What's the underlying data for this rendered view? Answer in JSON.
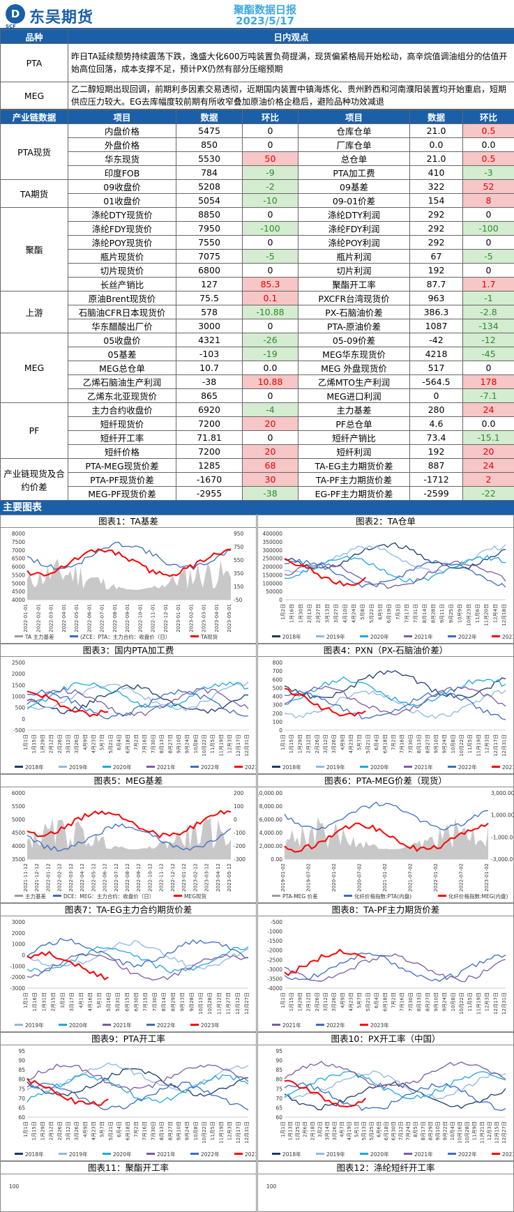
{
  "header": {
    "logo_mark": "D",
    "logo_text": "东吴期货",
    "logo_sub": "SCF",
    "title_line1": "聚酯数据日报",
    "title_line2": "2023/5/17"
  },
  "view": {
    "col_product": "品种",
    "col_view": "日内观点",
    "rows": [
      {
        "product": "PTA",
        "text": "昨日TA延续颓势持续震荡下跌，逸盛大化600万吨装置负荷提满，现货偏紧格局开始松动，高辛烷值调油组分的估值开始高位回落，成本支撑不足，预计PX仍然有部分压缩预期"
      },
      {
        "product": "MEG",
        "text": "乙二醇短期出现回调，前期利多因素交易透彻，近期国内装置中镇海炼化、贵州黔西和河南濮阳装置均开始重启，短期供应压力较大。EG去库幅度较前期有所收窄叠加原油价格企稳后，避险品种功效减退"
      }
    ]
  },
  "data_table": {
    "headers": [
      "产业链数据",
      "项目",
      "数据",
      "环比",
      "项目",
      "数据",
      "环比"
    ],
    "groups": [
      {
        "name": "PTA现货",
        "rows": [
          [
            "内盘价格",
            "5475",
            "0",
            "仓库仓单",
            "21.0",
            "0.5"
          ],
          [
            "外盘价格",
            "850",
            "0",
            "厂库仓单",
            "0.0",
            "0.0"
          ],
          [
            "华东现货",
            "5530",
            "50",
            "总仓单",
            "21.0",
            "0.5"
          ],
          [
            "印度FOB",
            "784",
            "-9",
            "PTA加工费",
            "410",
            "-3"
          ]
        ]
      },
      {
        "name": "TA期货",
        "rows": [
          [
            "09收盘价",
            "5208",
            "-2",
            "09基差",
            "322",
            "52"
          ],
          [
            "01收盘价",
            "5054",
            "-10",
            "09-01价差",
            "154",
            "8"
          ]
        ]
      },
      {
        "name": "聚酯",
        "rows": [
          [
            "涤纶DTY现货价",
            "8850",
            "0",
            "涤纶DTY利润",
            "292",
            "0"
          ],
          [
            "涤纶FDY现货价",
            "7950",
            "-100",
            "涤纶FDY利润",
            "292",
            "-100"
          ],
          [
            "涤纶POY现货价",
            "7550",
            "0",
            "涤纶POY利润",
            "292",
            "0"
          ],
          [
            "瓶片现货价",
            "7075",
            "-5",
            "瓶片利润",
            "67",
            "-5"
          ],
          [
            "切片现货价",
            "6800",
            "0",
            "切片利润",
            "192",
            "0"
          ],
          [
            "长丝产销比",
            "127",
            "85.3",
            "聚酯开工率",
            "87.7",
            "1.7"
          ]
        ]
      },
      {
        "name": "上游",
        "rows": [
          [
            "原油Brent现货价",
            "75.5",
            "0.1",
            "PXCFR台湾现货价",
            "963",
            "-1"
          ],
          [
            "石脑油CFR日本现货价",
            "578",
            "-10.88",
            "PX-石脑油价差",
            "386.3",
            "-2.8"
          ],
          [
            "华东醋酸出厂价",
            "3000",
            "0",
            "PTA-原油价差",
            "1087",
            "-134"
          ]
        ]
      },
      {
        "name": "MEG",
        "rows": [
          [
            "05收盘价",
            "4321",
            "-26",
            "05-09价差",
            "-42",
            "-12"
          ],
          [
            "05基差",
            "-103",
            "-19",
            "MEG华东现货价",
            "4218",
            "-45"
          ],
          [
            "MEG总仓单",
            "10.7",
            "0.0",
            "MEG 外盘现货价",
            "517",
            "0"
          ],
          [
            "乙烯石脑油生产利润",
            "-38",
            "10.88",
            "乙烯MTO生产利润",
            "-564.5",
            "178"
          ],
          [
            "乙烯东北亚现货价",
            "865",
            "0",
            "MEG进口利润",
            "0",
            "-7.1"
          ]
        ]
      },
      {
        "name": "PF",
        "rows": [
          [
            "主力合约收盘价",
            "6920",
            "-4",
            "主力基差",
            "280",
            "24"
          ],
          [
            "短纤现货价",
            "7200",
            "20",
            "PF总仓单",
            "4.6",
            "0.0"
          ],
          [
            "短纤开工率",
            "71.81",
            "0",
            "短纤产销比",
            "73.4",
            "-15.1"
          ],
          [
            "短纤价格",
            "7200",
            "20",
            "短纤利润",
            "192",
            "20"
          ]
        ]
      },
      {
        "name": "产业链现货及合约价差",
        "rows": [
          [
            "PTA-MEG现货价差",
            "1285",
            "68",
            "TA-EG主力期货价差",
            "887",
            "24"
          ],
          [
            "PTA-PF现货价差",
            "-1670",
            "30",
            "TA-PF主力期货价差",
            "-1712",
            "2"
          ],
          [
            "MEG-PF现货价差",
            "-2955",
            "-38",
            "EG-PF主力期货价差",
            "-2599",
            "-22"
          ]
        ]
      }
    ]
  },
  "charts_section": {
    "title": "主要图表"
  },
  "charts": [
    {
      "title": "图表1：TA基差",
      "legend": [
        "TA 主力基差",
        "(ZCE：PTA：主力合约：收盘价（日）",
        "TA现货"
      ],
      "yl": [
        "8000",
        "7500",
        "7000",
        "6500",
        "6000",
        "5500",
        "5000",
        "4500",
        "4000"
      ],
      "yr": [
        "950",
        "750",
        "550",
        "350",
        "150",
        "-50"
      ],
      "xt": [
        "2022-01-01",
        "2022-02-01",
        "2022-03-01",
        "2022-04-01",
        "2022-05-01",
        "2022-06-01",
        "2022-07-01",
        "2022-08-01",
        "2022-09-01",
        "2022-10-01",
        "2022-11-01",
        "2022-12-01",
        "2023-01-01",
        "2023-02-01",
        "2023-03-01",
        "2023-04-01",
        "2023-05-01"
      ]
    },
    {
      "title": "图表2：TA仓单",
      "legend": [
        "2018年",
        "2019年",
        "2020年",
        "2021年",
        "2022年",
        "2023年"
      ],
      "yl": [
        "400000",
        "350000",
        "300000",
        "250000",
        "200000",
        "150000",
        "100000",
        "50000",
        "0"
      ],
      "yr": [],
      "xt": [
        "1月2日",
        "1月16日",
        "1月30日",
        "2月13日",
        "2月27日",
        "3月13日",
        "3月27日",
        "4月10日",
        "4月24日",
        "5月8日",
        "5月22日",
        "6月5日",
        "6月19日",
        "7月3日",
        "7月17日",
        "7月31日",
        "8月14日",
        "8月28日",
        "9月11日",
        "9月25日",
        "10月9日",
        "10月23日",
        "11月6日",
        "11月20日",
        "12月4日",
        "12月18日"
      ]
    },
    {
      "title": "图表3：国内PTA加工费",
      "legend": [
        "2018年",
        "2019年",
        "2020年",
        "2021年",
        "2022年",
        "2023年"
      ],
      "yl": [
        "2500",
        "2000",
        "1500",
        "1000",
        "500",
        "0",
        "-500"
      ],
      "yr": [],
      "xt": [
        "1月1日",
        "1月15日",
        "1月29日",
        "2月12日",
        "2月26日",
        "3月12日",
        "3月26日",
        "4月9日",
        "4月23日",
        "5月7日",
        "5月21日",
        "6月4日",
        "6月18日",
        "7月2日",
        "7月16日",
        "7月30日",
        "8月13日",
        "8月27日",
        "9月10日",
        "9月24日",
        "10月8日",
        "10月22日",
        "11月5日",
        "11月19日",
        "12月3日",
        "12月17日",
        "12月31日"
      ]
    },
    {
      "title": "图表4：PXN（PX-石脑油价差）",
      "legend": [
        "2018年",
        "2019年",
        "2020年",
        "2021年",
        "2022年",
        "2023年"
      ],
      "yl": [
        "800",
        "700",
        "600",
        "500",
        "400",
        "300",
        "200",
        "100",
        "0"
      ],
      "yr": [],
      "xt": [
        "1月1日",
        "1月15日",
        "1月29日",
        "2月12日",
        "2月26日",
        "3月12日",
        "3月26日",
        "4月9日",
        "4月23日",
        "5月7日",
        "5月21日",
        "6月4日",
        "6月18日",
        "7月2日",
        "7月16日",
        "7月30日",
        "8月13日",
        "8月27日",
        "9月10日",
        "9月24日",
        "10月8日",
        "10月22日",
        "11月5日",
        "11月19日",
        "12月3日",
        "12月17日",
        "12月31日"
      ]
    },
    {
      "title": "图表5：MEG基差",
      "legend": [
        "主力基差",
        "DCE：MEG：主力合约：收盘价（日）",
        "MEG现货"
      ],
      "yl": [
        "6000",
        "5500",
        "5000",
        "4500",
        "4000",
        "3500"
      ],
      "yr": [
        "200",
        "100",
        "0",
        "-100",
        "-200",
        "-300"
      ],
      "xt": [
        "2021-11-12",
        "2021-12-12",
        "2022-01-12",
        "2022-02-12",
        "2022-03-12",
        "2022-04-12",
        "2022-05-12",
        "2022-06-12",
        "2022-07-12",
        "2022-08-12",
        "2022-09-12",
        "2022-10-12",
        "2022-11-12",
        "2022-12-12",
        "2023-01-12",
        "2023-02-12",
        "2023-03-12",
        "2023-04-12",
        "2023-05-12"
      ]
    },
    {
      "title": "图表6：PTA-MEG价差（现货）",
      "legend": [
        "PTA-MEG 价差",
        "化纤价格指数:PTA(内盘)",
        "化纤价格指数:MEG(内盘)"
      ],
      "yl": [
        "10,000.00",
        "8,000.00",
        "6,000.00",
        "4,000.00",
        "2,000.00",
        "0.00"
      ],
      "yr": [
        "3,000.00",
        "1,000.00",
        "-1,000.00",
        "-3,000.00"
      ],
      "xt": [
        "2019-01-02",
        "2019-07-02",
        "2020-01-02",
        "2020-07-02",
        "2021-01-02",
        "2021-07-02",
        "2022-01-02",
        "2022-07-02",
        "2023-01-02"
      ]
    },
    {
      "title": "图表7：TA-EG主力合约期货价差",
      "legend": [
        "2019年",
        "2020年",
        "2021年",
        "2022年",
        "2023年"
      ],
      "yl": [
        "3000",
        "2000",
        "1000",
        "0",
        "-1000",
        "-2000",
        "-3000"
      ],
      "yr": [],
      "xt": [
        "1月1日",
        "1月16日",
        "1月31日",
        "2月15日",
        "3月2日",
        "3月17日",
        "4月1日",
        "4月16日",
        "5月1日",
        "5月16日",
        "5月31日",
        "6月15日",
        "6月30日",
        "7月15日",
        "7月30日",
        "8月14日",
        "8月29日",
        "9月13日",
        "9月28日",
        "10月13日",
        "10月28日",
        "11月12日",
        "11月27日",
        "12月12日",
        "12月27日"
      ]
    },
    {
      "title": "图表8：TA-PF主力期货价差",
      "legend": [
        "2021年",
        "2022年",
        "2023年"
      ],
      "yl": [
        "-500",
        "-1000",
        "-1500",
        "-2000",
        "-2500",
        "-3000",
        "-3500",
        "-4000"
      ],
      "yr": [],
      "xt": [
        "1月1日",
        "1月15日",
        "1月29日",
        "2月12日",
        "2月26日",
        "3月12日",
        "3月26日",
        "4月9日",
        "4月23日",
        "5月7日",
        "5月21日",
        "6月4日",
        "6月18日",
        "7月2日",
        "7月16日",
        "7月30日",
        "8月13日",
        "8月27日",
        "9月10日",
        "9月24日",
        "10月8日",
        "10月22日",
        "11月5日",
        "11月19日",
        "12月3日",
        "12月17日",
        "12月31日"
      ]
    },
    {
      "title": "图表9：PTA开工率",
      "legend": [
        "2018年",
        "2019年",
        "2020年",
        "2021年",
        "2022年",
        "2023年"
      ],
      "yl": [
        "95",
        "90",
        "85",
        "80",
        "75",
        "70",
        "65",
        "60"
      ],
      "yr": [],
      "xt": [
        "1月1日",
        "1月15日",
        "1月29日",
        "2月12日",
        "2月26日",
        "3月12日",
        "3月26日",
        "4月9日",
        "4月23日",
        "5月7日",
        "5月21日",
        "6月4日",
        "6月18日",
        "7月2日",
        "7月16日",
        "7月30日",
        "8月13日",
        "8月27日",
        "9月10日",
        "9月24日",
        "10月8日",
        "10月22日",
        "11月5日",
        "11月19日",
        "12月3日",
        "12月17日",
        "12月31日"
      ]
    },
    {
      "title": "图表10：PX开工率（中国）",
      "legend": [
        "2018年",
        "2019年",
        "2020年",
        "2021年",
        "2022年",
        "2023年"
      ],
      "yl": [
        "95",
        "90",
        "85",
        "80",
        "75",
        "70",
        "65",
        "60"
      ],
      "yr": [],
      "xt": [
        "1月1日",
        "1月13日",
        "1月25日",
        "2月6日",
        "2月18日",
        "3月2日",
        "3月14日",
        "3月26日",
        "4月7日",
        "4月19日",
        "5月1日",
        "5月13日",
        "5月25日",
        "6月6日",
        "6月18日",
        "6月30日",
        "7月12日",
        "7月24日",
        "8月5日",
        "8月17日",
        "8月29日",
        "9月10日",
        "9月22日",
        "10月4日",
        "10月16日",
        "10月28日",
        "11月9日",
        "11月21日",
        "12月3日",
        "12月15日",
        "12月27日"
      ]
    },
    {
      "title": "图表11：聚酯开工率",
      "legend": [],
      "yl": [
        "100"
      ],
      "yr": [],
      "xt": []
    },
    {
      "title": "图表12：涤纶短纤开工率",
      "legend": [],
      "yl": [
        "100"
      ],
      "yr": [],
      "xt": []
    }
  ],
  "colors": {
    "navy": "#1a3a6b",
    "lightblue": "#8fb8e0",
    "cyan": "#1ba8e0",
    "purple": "#7b5aa6",
    "blue": "#3a6cc4",
    "red": "#ff0000",
    "gray": "#9a9a9a"
  }
}
